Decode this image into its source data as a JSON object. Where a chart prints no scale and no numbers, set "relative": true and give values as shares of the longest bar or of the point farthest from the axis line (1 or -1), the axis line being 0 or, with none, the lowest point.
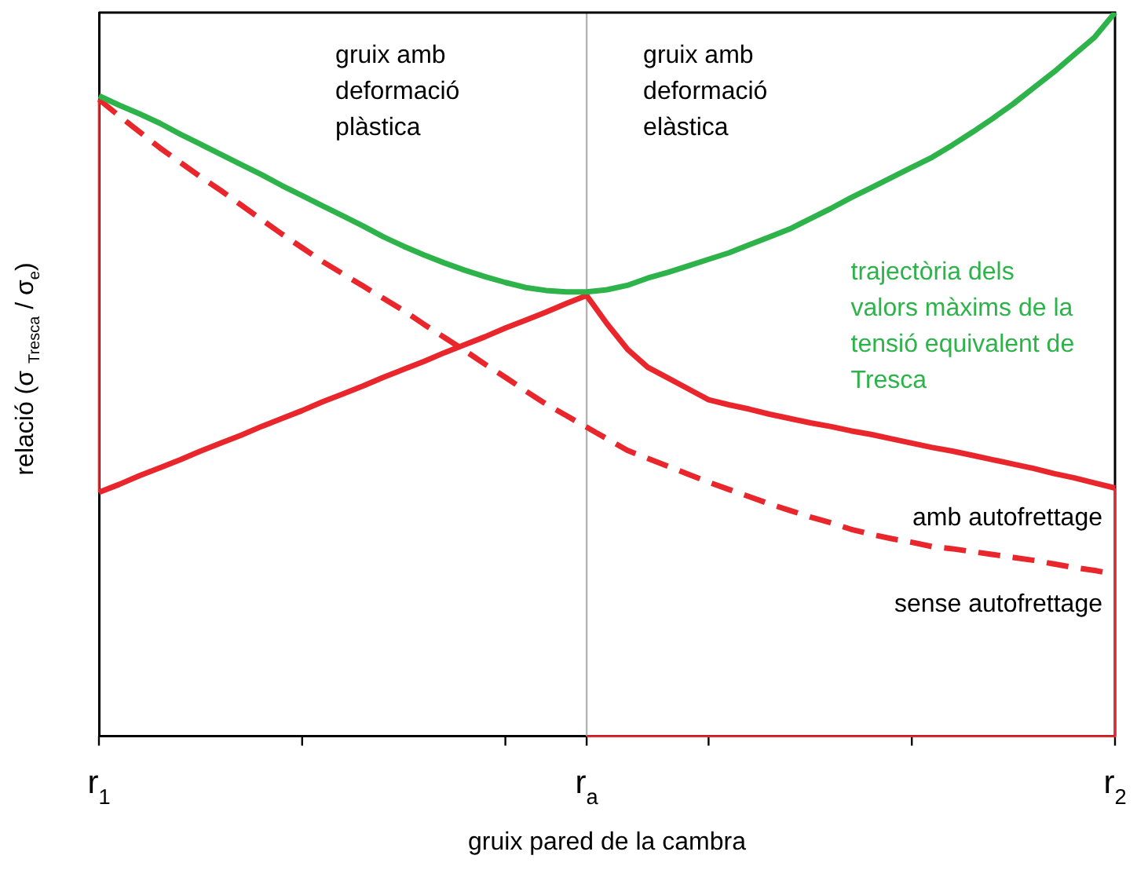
{
  "chart_data": {
    "type": "line",
    "relative": true,
    "xlabel": "gruix pared de la cambra",
    "ylabel": "relació (σ $_{Tresca}$ / σ$_{e}$)",
    "categories": [
      "r$_{1}$",
      null,
      null,
      null,
      null,
      null,
      null,
      null,
      null,
      null,
      null,
      null,
      null,
      null,
      null,
      null,
      null,
      null,
      null,
      null,
      null,
      null,
      null,
      null,
      "r$_{a}$",
      null,
      null,
      null,
      null,
      null,
      null,
      null,
      null,
      null,
      null,
      null,
      null,
      null,
      null,
      null,
      null,
      null,
      null,
      null,
      null,
      null,
      null,
      null,
      null,
      null,
      "r$_{2}$"
    ],
    "annotations": [
      "gruix amb deformació plàstica",
      "gruix amb deformació elàstica"
    ],
    "ref_lines": [
      {
        "axis": "x",
        "value": "r$_{a}$",
        "color": "#b4b4b4"
      }
    ],
    "legend": false,
    "grid": false,
    "marker": "none",
    "series": [
      {
        "name": "trajectòria dels valors màxims de la tensió equivalent de Tresca",
        "color": "#2db34a",
        "line_style": "solid",
        "values": [
          0.885,
          0.872,
          0.86,
          0.847,
          0.832,
          0.818,
          0.804,
          0.79,
          0.776,
          0.761,
          0.747,
          0.733,
          0.719,
          0.705,
          0.69,
          0.677,
          0.665,
          0.654,
          0.644,
          0.635,
          0.627,
          0.62,
          0.616,
          0.614,
          0.614,
          0.617,
          0.623,
          0.633,
          0.641,
          0.65,
          0.659,
          0.668,
          0.679,
          0.69,
          0.701,
          0.715,
          0.729,
          0.744,
          0.758,
          0.772,
          0.786,
          0.8,
          0.817,
          0.835,
          0.854,
          0.874,
          0.896,
          0.918,
          0.942,
          0.966,
          1
        ]
      },
      {
        "name": "amb autofrettage",
        "color": "#e8262c",
        "line_style": "solid",
        "values": [
          0.337,
          0.348,
          0.36,
          0.371,
          0.382,
          0.394,
          0.405,
          0.416,
          0.428,
          0.439,
          0.45,
          0.462,
          0.473,
          0.484,
          0.496,
          0.507,
          0.518,
          0.53,
          0.541,
          0.552,
          0.564,
          0.575,
          0.586,
          0.598,
          0.609,
          0.57,
          0.535,
          0.51,
          0.495,
          0.48,
          0.465,
          0.458,
          0.452,
          0.445,
          0.439,
          0.433,
          0.428,
          0.422,
          0.417,
          0.411,
          0.405,
          0.399,
          0.394,
          0.388,
          0.382,
          0.376,
          0.37,
          0.363,
          0.357,
          0.35,
          0.343
        ]
      },
      {
        "name": "sense autofrettage",
        "color": "#e8262c",
        "line_style": "dashed",
        "values": [
          0.88,
          0.857,
          0.835,
          0.813,
          0.793,
          0.773,
          0.754,
          0.734,
          0.714,
          0.694,
          0.675,
          0.656,
          0.639,
          0.622,
          0.605,
          0.588,
          0.569,
          0.551,
          0.533,
          0.514,
          0.496,
          0.477,
          0.459,
          0.443,
          0.427,
          0.411,
          0.395,
          0.384,
          0.373,
          0.362,
          0.351,
          0.341,
          0.331,
          0.321,
          0.312,
          0.303,
          0.295,
          0.286,
          0.279,
          0.273,
          0.268,
          0.262,
          0.259,
          0.255,
          0.251,
          0.247,
          0.243,
          0.238,
          0.233,
          0.229,
          0.224
        ]
      }
    ]
  }
}
